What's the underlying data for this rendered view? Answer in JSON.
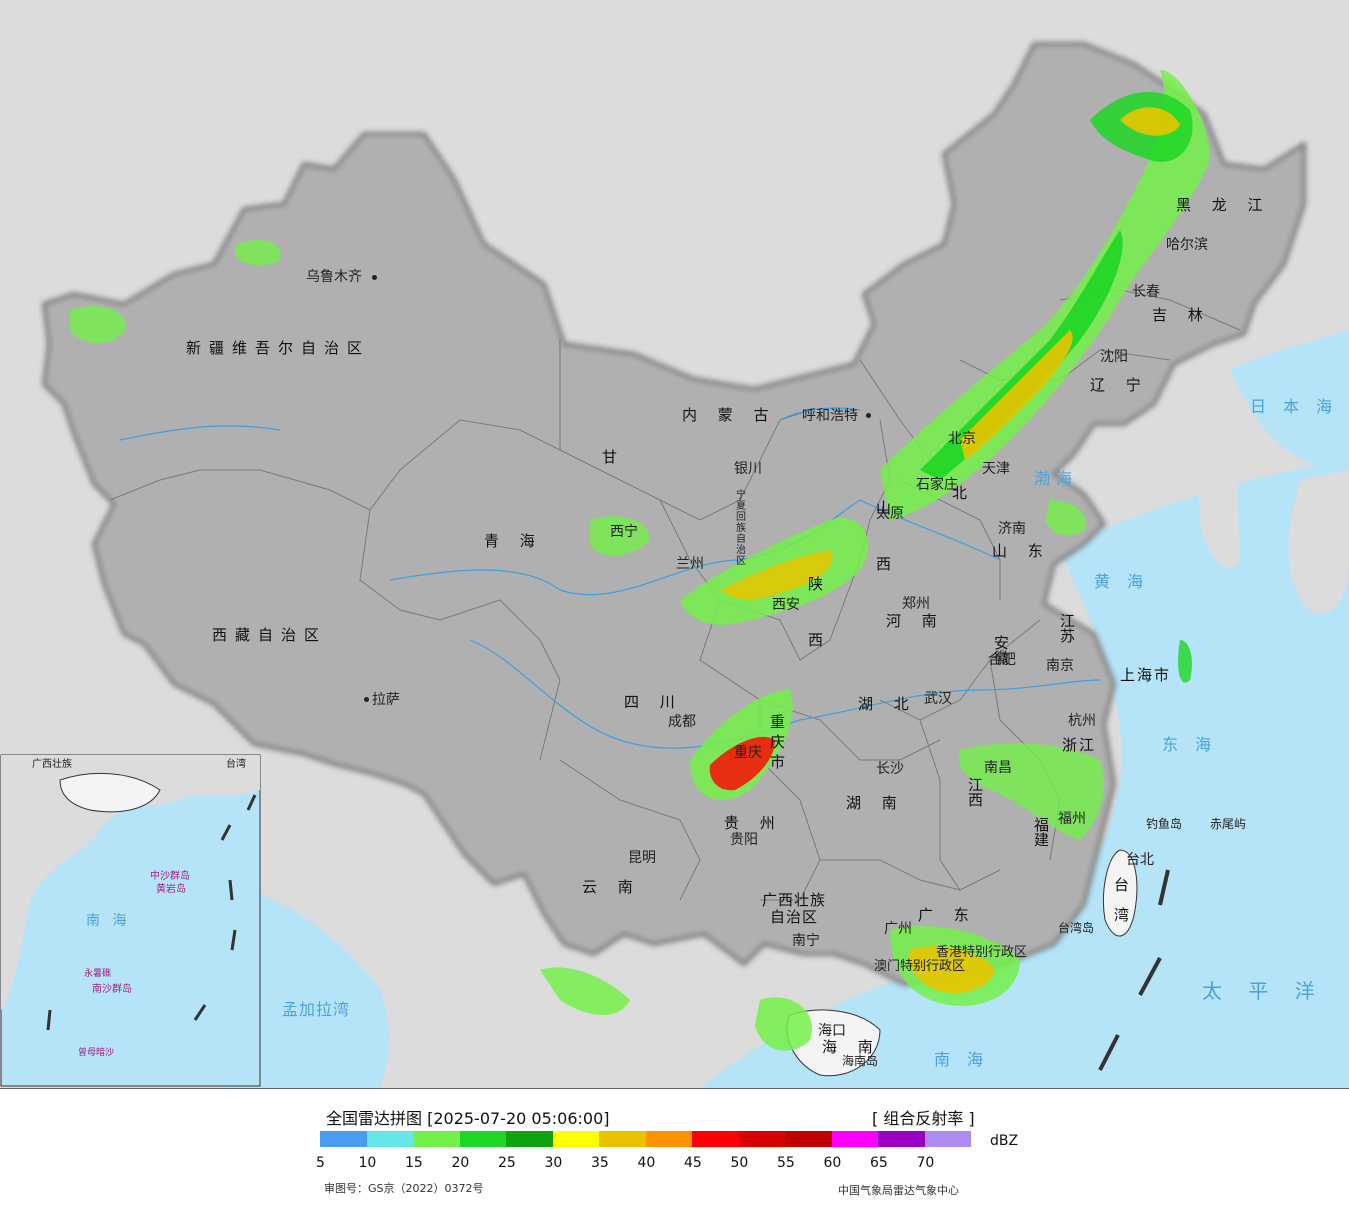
{
  "map": {
    "provinces": [
      {
        "id": "xinjiang",
        "label": "新疆维吾尔自治区"
      },
      {
        "id": "xizang",
        "label": "西藏自治区"
      },
      {
        "id": "qinghai",
        "label": "青  海"
      },
      {
        "id": "gansu",
        "label": "甘"
      },
      {
        "id": "sichuan",
        "label": "四  川"
      },
      {
        "id": "yunnan",
        "label": "云  南"
      },
      {
        "id": "guizhou",
        "label": "贵  州"
      },
      {
        "id": "guangxi",
        "label": "广西壮族"
      },
      {
        "id": "guangxi2",
        "label": "自治区"
      },
      {
        "id": "guangdong",
        "label": "广  东"
      },
      {
        "id": "hunan",
        "label": "湖  南"
      },
      {
        "id": "hubei",
        "label": "湖  北"
      },
      {
        "id": "henan",
        "label": "河  南"
      },
      {
        "id": "shandong",
        "label": "山 东"
      },
      {
        "id": "jiangsu",
        "label": "江 苏"
      },
      {
        "id": "anhui",
        "label": "安 徽"
      },
      {
        "id": "jiangxi",
        "label": "江 西"
      },
      {
        "id": "fujian",
        "label": "福 建"
      },
      {
        "id": "zhejiang",
        "label": "浙江"
      },
      {
        "id": "shanghai",
        "label": "上海市"
      },
      {
        "id": "liaoning",
        "label": "辽 宁"
      },
      {
        "id": "jilin",
        "label": "吉 林"
      },
      {
        "id": "heilongjiang",
        "label": "黑 龙 江"
      },
      {
        "id": "neimeng",
        "label": "内  蒙  古"
      },
      {
        "id": "shaanxi",
        "label": "陕 西"
      },
      {
        "id": "shanxi",
        "label": "山 西"
      },
      {
        "id": "hebei",
        "label": "北"
      },
      {
        "id": "chongqing",
        "label": "重庆市"
      },
      {
        "id": "hainan",
        "label": "海  南"
      },
      {
        "id": "taiwan",
        "label": "台湾"
      },
      {
        "id": "ningxia",
        "label": "宁夏回族自治区"
      },
      {
        "id": "hongkong",
        "label": "香港特别行政区"
      },
      {
        "id": "macau",
        "label": "澳门特别行政区"
      }
    ],
    "cities": [
      {
        "id": "urumqi",
        "label": "乌鲁木齐"
      },
      {
        "id": "lhasa",
        "label": "拉萨"
      },
      {
        "id": "xining",
        "label": "西宁"
      },
      {
        "id": "lanzhou",
        "label": "兰州"
      },
      {
        "id": "yinchuan",
        "label": "银川"
      },
      {
        "id": "hohhot",
        "label": "呼和浩特"
      },
      {
        "id": "xian",
        "label": "西安"
      },
      {
        "id": "taiyuan",
        "label": "太原"
      },
      {
        "id": "shijiazhuang",
        "label": "石家庄"
      },
      {
        "id": "beijing",
        "label": "北京"
      },
      {
        "id": "tianjin",
        "label": "天津"
      },
      {
        "id": "jinan",
        "label": "济南"
      },
      {
        "id": "zhengzhou",
        "label": "郑州"
      },
      {
        "id": "hefei",
        "label": "合肥"
      },
      {
        "id": "nanjing",
        "label": "南京"
      },
      {
        "id": "hangzhou",
        "label": "杭州"
      },
      {
        "id": "wuhan",
        "label": "武汉"
      },
      {
        "id": "chengdu",
        "label": "成都"
      },
      {
        "id": "chongqing_city",
        "label": "重庆"
      },
      {
        "id": "guiyang",
        "label": "贵阳"
      },
      {
        "id": "kunming",
        "label": "昆明"
      },
      {
        "id": "changsha",
        "label": "长沙"
      },
      {
        "id": "nanchang",
        "label": "南昌"
      },
      {
        "id": "fuzhou",
        "label": "福州"
      },
      {
        "id": "guangzhou",
        "label": "广州"
      },
      {
        "id": "nanning",
        "label": "南宁"
      },
      {
        "id": "haikou",
        "label": "海口"
      },
      {
        "id": "taibei",
        "label": "台北"
      },
      {
        "id": "shenyang",
        "label": "沈阳"
      },
      {
        "id": "changchun",
        "label": "长春"
      },
      {
        "id": "harbin",
        "label": "哈尔滨"
      }
    ],
    "seas": [
      {
        "id": "bohai",
        "label": "渤海"
      },
      {
        "id": "huanghai",
        "label": "黄 海"
      },
      {
        "id": "donghai",
        "label": "东 海"
      },
      {
        "id": "taipingyang",
        "label": "太 平 洋"
      },
      {
        "id": "nanhai",
        "label": "南 海"
      },
      {
        "id": "ribenhai",
        "label": "日 本 海"
      },
      {
        "id": "mengjialawan",
        "label": "孟加拉湾"
      }
    ],
    "islands": [
      {
        "id": "diaoyu",
        "label": "钓鱼岛"
      },
      {
        "id": "chiwei",
        "label": "赤尾屿"
      },
      {
        "id": "taiwan_island",
        "label": "台湾岛"
      },
      {
        "id": "hainan_island",
        "label": "海南岛"
      }
    ],
    "inset": {
      "seas": [
        {
          "id": "inset-nanhai",
          "label": "南  海"
        }
      ],
      "labels": [
        {
          "id": "inset-zhongsha",
          "label": "中沙群岛"
        },
        {
          "id": "inset-huangyan",
          "label": "黄岩岛"
        },
        {
          "id": "inset-nansha",
          "label": "南沙群岛"
        },
        {
          "id": "inset-yongshu",
          "label": "永暑礁"
        },
        {
          "id": "inset-zengmu",
          "label": "曾母暗沙"
        },
        {
          "id": "inset-guangxi",
          "label": "广西壮族"
        },
        {
          "id": "inset-taiwan",
          "label": "台湾"
        }
      ]
    },
    "colors": {
      "land": "#f2f2f2",
      "foreign": "#dcdcdc",
      "water": "#b5e3f7",
      "border": "#111111",
      "river": "#3aa0e0"
    }
  },
  "footer": {
    "title": "全国雷达拼图 [2025-07-20 05:06:00]",
    "product": "[ 组合反射率 ]",
    "unit": "dBZ",
    "approval": "审图号：GS京（2022）0372号",
    "credit": "中国气象局雷达气象中心",
    "legend": {
      "colors": [
        "#4a9cf0",
        "#66e6e8",
        "#74f04a",
        "#1ed626",
        "#0fa30f",
        "#ffff00",
        "#e8c400",
        "#ff9200",
        "#ff0000",
        "#d80000",
        "#c00000",
        "#ff00ff",
        "#9a00c0",
        "#ad8cf0"
      ],
      "ticks": [
        "5",
        "10",
        "15",
        "20",
        "25",
        "30",
        "35",
        "40",
        "45",
        "50",
        "55",
        "60",
        "65",
        "70"
      ]
    }
  }
}
